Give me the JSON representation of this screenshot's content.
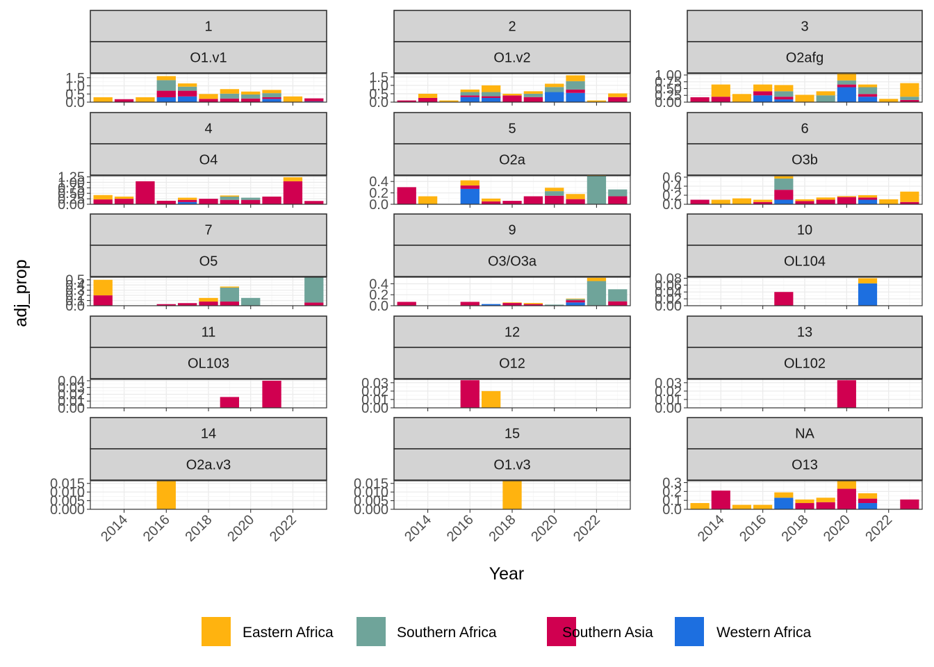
{
  "chart_data": {
    "type": "bar",
    "stacked": true,
    "facet_layout": "5 rows x 3 columns, each panel with two strip labels",
    "xlabel": "Year",
    "ylabel": "adj_prop",
    "x_tick_labels": [
      "2014",
      "2016",
      "2018",
      "2020",
      "2022"
    ],
    "xlim": [
      2012.4,
      2023.6
    ],
    "grid": true,
    "legend_position": "bottom",
    "legend": [
      {
        "name": "Eastern Africa",
        "color": "#FFB30F"
      },
      {
        "name": "Southern Africa",
        "color": "#6FA49A"
      },
      {
        "name": "Southern Asia",
        "color": "#D00050"
      },
      {
        "name": "Western Africa",
        "color": "#1D6FE0"
      }
    ],
    "stack_order": [
      "Western Africa",
      "Southern Asia",
      "Southern Africa",
      "Eastern Africa"
    ],
    "panels": [
      {
        "strip1": "1",
        "strip2": "O1.v1",
        "ylim": [
          0,
          1.75
        ],
        "y_tick_labels": [
          "0.0",
          "0.5",
          "1.0",
          "1.5"
        ],
        "y_ticks": [
          0,
          0.5,
          1.0,
          1.5
        ],
        "bars": [
          {
            "year": 2013,
            "Eastern Africa": 0.3
          },
          {
            "year": 2014,
            "Southern Asia": 0.18
          },
          {
            "year": 2015,
            "Eastern Africa": 0.3
          },
          {
            "year": 2016,
            "Western Africa": 0.3,
            "Southern Asia": 0.4,
            "Southern Africa": 0.65,
            "Eastern Africa": 0.25
          },
          {
            "year": 2017,
            "Western Africa": 0.35,
            "Southern Asia": 0.35,
            "Southern Africa": 0.25,
            "Eastern Africa": 0.2
          },
          {
            "year": 2018,
            "Southern Asia": 0.2,
            "Eastern Africa": 0.3
          },
          {
            "year": 2019,
            "Southern Asia": 0.22,
            "Southern Africa": 0.3,
            "Eastern Africa": 0.28
          },
          {
            "year": 2020,
            "Southern Asia": 0.22,
            "Southern Africa": 0.25,
            "Eastern Africa": 0.18
          },
          {
            "year": 2021,
            "Western Africa": 0.2,
            "Southern Asia": 0.1,
            "Southern Africa": 0.25,
            "Eastern Africa": 0.2
          },
          {
            "year": 2022,
            "Eastern Africa": 0.35
          },
          {
            "year": 2023,
            "Southern Asia": 0.18,
            "Western Africa": 0.05
          }
        ]
      },
      {
        "strip1": "2",
        "strip2": "O1.v2",
        "ylim": [
          0,
          1.7
        ],
        "y_tick_labels": [
          "0.0",
          "0.5",
          "1.0",
          "1.5"
        ],
        "y_ticks": [
          0,
          0.5,
          1.0,
          1.5
        ],
        "bars": [
          {
            "year": 2013,
            "Southern Asia": 0.1
          },
          {
            "year": 2014,
            "Southern Asia": 0.25,
            "Eastern Africa": 0.25
          },
          {
            "year": 2015,
            "Eastern Africa": 0.1
          },
          {
            "year": 2016,
            "Western Africa": 0.3,
            "Southern Asia": 0.1,
            "Southern Africa": 0.2,
            "Eastern Africa": 0.15
          },
          {
            "year": 2017,
            "Western Africa": 0.25,
            "Southern Asia": 0.1,
            "Southern Africa": 0.25,
            "Eastern Africa": 0.4
          },
          {
            "year": 2018,
            "Southern Asia": 0.4,
            "Eastern Africa": 0.1
          },
          {
            "year": 2019,
            "Southern Asia": 0.3,
            "Southern Africa": 0.2,
            "Eastern Africa": 0.15
          },
          {
            "year": 2020,
            "Western Africa": 0.6,
            "Southern Africa": 0.3,
            "Eastern Africa": 0.2
          },
          {
            "year": 2021,
            "Western Africa": 0.55,
            "Southern Asia": 0.2,
            "Southern Africa": 0.5,
            "Eastern Africa": 0.35
          },
          {
            "year": 2022,
            "Eastern Africa": 0.1
          },
          {
            "year": 2023,
            "Southern Asia": 0.3,
            "Eastern Africa": 0.22
          }
        ]
      },
      {
        "strip1": "3",
        "strip2": "O2afg",
        "ylim": [
          0,
          1.05
        ],
        "y_tick_labels": [
          "0.00",
          "0.25",
          "0.50",
          "0.75",
          "1.00"
        ],
        "y_ticks": [
          0,
          0.25,
          0.5,
          0.75,
          1.0
        ],
        "bars": [
          {
            "year": 2013,
            "Southern Asia": 0.18
          },
          {
            "year": 2014,
            "Southern Asia": 0.2,
            "Eastern Africa": 0.45
          },
          {
            "year": 2015,
            "Eastern Africa": 0.3
          },
          {
            "year": 2016,
            "Western Africa": 0.25,
            "Southern Asia": 0.15,
            "Eastern Africa": 0.25
          },
          {
            "year": 2017,
            "Western Africa": 0.1,
            "Southern Asia": 0.1,
            "Southern Africa": 0.2,
            "Eastern Africa": 0.23
          },
          {
            "year": 2018,
            "Eastern Africa": 0.27
          },
          {
            "year": 2019,
            "Southern Africa": 0.25,
            "Eastern Africa": 0.15
          },
          {
            "year": 2020,
            "Western Africa": 0.55,
            "Southern Asia": 0.1,
            "Southern Africa": 0.15,
            "Eastern Africa": 0.3
          },
          {
            "year": 2021,
            "Western Africa": 0.2,
            "Southern Asia": 0.1,
            "Southern Africa": 0.25,
            "Eastern Africa": 0.1
          },
          {
            "year": 2022,
            "Eastern Africa": 0.12
          },
          {
            "year": 2023,
            "Southern Asia": 0.08,
            "Southern Africa": 0.12,
            "Eastern Africa": 0.5
          }
        ]
      },
      {
        "strip1": "4",
        "strip2": "O4",
        "ylim": [
          0,
          1.3
        ],
        "y_tick_labels": [
          "0.00",
          "0.25",
          "0.50",
          "0.75",
          "1.00",
          "1.25"
        ],
        "y_ticks": [
          0,
          0.25,
          0.5,
          0.75,
          1.0,
          1.25
        ],
        "bars": [
          {
            "year": 2013,
            "Southern Asia": 0.22,
            "Eastern Africa": 0.2
          },
          {
            "year": 2014,
            "Southern Asia": 0.25,
            "Eastern Africa": 0.1
          },
          {
            "year": 2015,
            "Southern Asia": 1.05
          },
          {
            "year": 2016,
            "Southern Asia": 0.16
          },
          {
            "year": 2017,
            "Western Africa": 0.1,
            "Southern Asia": 0.1,
            "Eastern Africa": 0.1
          },
          {
            "year": 2018,
            "Southern Asia": 0.25
          },
          {
            "year": 2019,
            "Southern Asia": 0.2,
            "Southern Africa": 0.15,
            "Eastern Africa": 0.05
          },
          {
            "year": 2020,
            "Southern Asia": 0.2,
            "Southern Africa": 0.1
          },
          {
            "year": 2021,
            "Southern Asia": 0.35
          },
          {
            "year": 2022,
            "Southern Asia": 1.05,
            "Eastern Africa": 0.18
          },
          {
            "year": 2023,
            "Southern Asia": 0.15
          }
        ]
      },
      {
        "strip1": "5",
        "strip2": "O2a",
        "ylim": [
          0,
          0.5
        ],
        "y_tick_labels": [
          "0.0",
          "0.2",
          "0.4"
        ],
        "y_ticks": [
          0,
          0.2,
          0.4
        ],
        "bars": [
          {
            "year": 2013,
            "Southern Asia": 0.3
          },
          {
            "year": 2014,
            "Eastern Africa": 0.14
          },
          {
            "year": 2016,
            "Western Africa": 0.27,
            "Southern Asia": 0.06,
            "Eastern Africa": 0.09
          },
          {
            "year": 2017,
            "Southern Asia": 0.05,
            "Eastern Africa": 0.05
          },
          {
            "year": 2018,
            "Southern Asia": 0.06
          },
          {
            "year": 2019,
            "Southern Asia": 0.14
          },
          {
            "year": 2020,
            "Southern Asia": 0.15,
            "Southern Africa": 0.08,
            "Eastern Africa": 0.06
          },
          {
            "year": 2021,
            "Southern Asia": 0.09,
            "Eastern Africa": 0.09
          },
          {
            "year": 2022,
            "Southern Africa": 0.5,
            "Eastern Africa": 0.04
          },
          {
            "year": 2023,
            "Southern Asia": 0.14,
            "Southern Africa": 0.12
          }
        ]
      },
      {
        "strip1": "6",
        "strip2": "O3b",
        "ylim": [
          0,
          0.63
        ],
        "y_tick_labels": [
          "0.0",
          "0.2",
          "0.4",
          "0.6"
        ],
        "y_ticks": [
          0,
          0.2,
          0.4,
          0.6
        ],
        "bars": [
          {
            "year": 2013,
            "Southern Asia": 0.1
          },
          {
            "year": 2014,
            "Eastern Africa": 0.1
          },
          {
            "year": 2015,
            "Eastern Africa": 0.13
          },
          {
            "year": 2016,
            "Southern Asia": 0.05,
            "Eastern Africa": 0.05
          },
          {
            "year": 2017,
            "Western Africa": 0.1,
            "Southern Asia": 0.22,
            "Southern Africa": 0.25,
            "Eastern Africa": 0.05
          },
          {
            "year": 2018,
            "Southern Asia": 0.07,
            "Eastern Africa": 0.04
          },
          {
            "year": 2019,
            "Southern Asia": 0.1,
            "Eastern Africa": 0.05
          },
          {
            "year": 2020,
            "Southern Asia": 0.16,
            "Eastern Africa": 0.02
          },
          {
            "year": 2021,
            "Western Africa": 0.1,
            "Southern Asia": 0.05,
            "Eastern Africa": 0.05
          },
          {
            "year": 2022,
            "Eastern Africa": 0.11
          },
          {
            "year": 2023,
            "Southern Asia": 0.05,
            "Eastern Africa": 0.23
          }
        ]
      },
      {
        "strip1": "7",
        "strip2": "O5",
        "ylim": [
          0,
          0.55
        ],
        "y_tick_labels": [
          "0.0",
          "0.1",
          "0.2",
          "0.3",
          "0.4",
          "0.5"
        ],
        "y_ticks": [
          0,
          0.1,
          0.2,
          0.3,
          0.4,
          0.5
        ],
        "bars": [
          {
            "year": 2013,
            "Southern Asia": 0.2,
            "Eastern Africa": 0.3
          },
          {
            "year": 2016,
            "Southern Asia": 0.03
          },
          {
            "year": 2017,
            "Southern Asia": 0.05
          },
          {
            "year": 2018,
            "Southern Asia": 0.08,
            "Eastern Africa": 0.07
          },
          {
            "year": 2019,
            "Southern Asia": 0.08,
            "Southern Africa": 0.27,
            "Eastern Africa": 0.02
          },
          {
            "year": 2020,
            "Southern Africa": 0.15
          },
          {
            "year": 2023,
            "Southern Asia": 0.06,
            "Southern Africa": 0.49
          }
        ]
      },
      {
        "strip1": "9",
        "strip2": "O3/O3a",
        "ylim": [
          0,
          0.52
        ],
        "y_tick_labels": [
          "0.0",
          "0.2",
          "0.4"
        ],
        "y_ticks": [
          0,
          0.2,
          0.4
        ],
        "bars": [
          {
            "year": 2013,
            "Southern Asia": 0.07
          },
          {
            "year": 2016,
            "Southern Asia": 0.07
          },
          {
            "year": 2017,
            "Western Africa": 0.03
          },
          {
            "year": 2018,
            "Southern Asia": 0.05,
            "Eastern Africa": 0.01
          },
          {
            "year": 2019,
            "Southern Asia": 0.03,
            "Eastern Africa": 0.02
          },
          {
            "year": 2020,
            "Southern Africa": 0.02
          },
          {
            "year": 2021,
            "Western Africa": 0.06,
            "Southern Asia": 0.04,
            "Southern Africa": 0.02,
            "Eastern Africa": 0.01
          },
          {
            "year": 2022,
            "Southern Africa": 0.45,
            "Eastern Africa": 0.06
          },
          {
            "year": 2023,
            "Southern Asia": 0.08,
            "Southern Africa": 0.22
          }
        ]
      },
      {
        "strip1": "10",
        "strip2": "OL104",
        "ylim": [
          0,
          0.083
        ],
        "y_tick_labels": [
          "0.00",
          "0.02",
          "0.04",
          "0.06",
          "0.08"
        ],
        "y_ticks": [
          0,
          0.02,
          0.04,
          0.06,
          0.08
        ],
        "bars": [
          {
            "year": 2017,
            "Southern Asia": 0.04
          },
          {
            "year": 2021,
            "Western Africa": 0.065,
            "Eastern Africa": 0.015
          }
        ]
      },
      {
        "strip1": "11",
        "strip2": "OL103",
        "ylim": [
          0,
          0.042
        ],
        "y_tick_labels": [
          "0.00",
          "0.01",
          "0.02",
          "0.03",
          "0.04"
        ],
        "y_ticks": [
          0,
          0.01,
          0.02,
          0.03,
          0.04
        ],
        "bars": [
          {
            "year": 2019,
            "Southern Asia": 0.016
          },
          {
            "year": 2021,
            "Southern Asia": 0.04
          }
        ]
      },
      {
        "strip1": "12",
        "strip2": "O12",
        "ylim": [
          0,
          0.034
        ],
        "y_tick_labels": [
          "0.00",
          "0.01",
          "0.02",
          "0.03"
        ],
        "y_ticks": [
          0,
          0.01,
          0.02,
          0.03
        ],
        "bars": [
          {
            "year": 2016,
            "Southern Asia": 0.033
          },
          {
            "year": 2017,
            "Eastern Africa": 0.02
          }
        ]
      },
      {
        "strip1": "13",
        "strip2": "OL102",
        "ylim": [
          0,
          0.034
        ],
        "y_tick_labels": [
          "0.00",
          "0.01",
          "0.02",
          "0.03"
        ],
        "y_ticks": [
          0,
          0.01,
          0.02,
          0.03
        ],
        "bars": [
          {
            "year": 2020,
            "Southern Asia": 0.033
          }
        ]
      },
      {
        "strip1": "14",
        "strip2": "O2a.v3",
        "ylim": [
          0,
          0.0165
        ],
        "y_tick_labels": [
          "0.000",
          "0.005",
          "0.010",
          "0.015"
        ],
        "y_ticks": [
          0,
          0.005,
          0.01,
          0.015
        ],
        "bars": [
          {
            "year": 2016,
            "Eastern Africa": 0.0165
          }
        ]
      },
      {
        "strip1": "15",
        "strip2": "O1.v3",
        "ylim": [
          0,
          0.0165
        ],
        "y_tick_labels": [
          "0.000",
          "0.005",
          "0.010",
          "0.015"
        ],
        "y_ticks": [
          0,
          0.005,
          0.01,
          0.015
        ],
        "bars": [
          {
            "year": 2018,
            "Eastern Africa": 0.0165
          }
        ]
      },
      {
        "strip1": "NA",
        "strip2": "O13",
        "ylim": [
          0,
          0.32
        ],
        "y_tick_labels": [
          "0.0",
          "0.1",
          "0.2",
          "0.3"
        ],
        "y_ticks": [
          0,
          0.1,
          0.2,
          0.3
        ],
        "bars": [
          {
            "year": 2013,
            "Eastern Africa": 0.07
          },
          {
            "year": 2014,
            "Southern Asia": 0.21
          },
          {
            "year": 2015,
            "Eastern Africa": 0.05
          },
          {
            "year": 2016,
            "Eastern Africa": 0.05
          },
          {
            "year": 2017,
            "Western Africa": 0.13,
            "Eastern Africa": 0.06
          },
          {
            "year": 2018,
            "Southern Asia": 0.07,
            "Eastern Africa": 0.04
          },
          {
            "year": 2019,
            "Southern Asia": 0.08,
            "Eastern Africa": 0.05
          },
          {
            "year": 2020,
            "Southern Asia": 0.23,
            "Eastern Africa": 0.09
          },
          {
            "year": 2021,
            "Western Africa": 0.07,
            "Southern Asia": 0.05,
            "Eastern Africa": 0.06
          },
          {
            "year": 2023,
            "Southern Asia": 0.11
          }
        ]
      }
    ]
  }
}
